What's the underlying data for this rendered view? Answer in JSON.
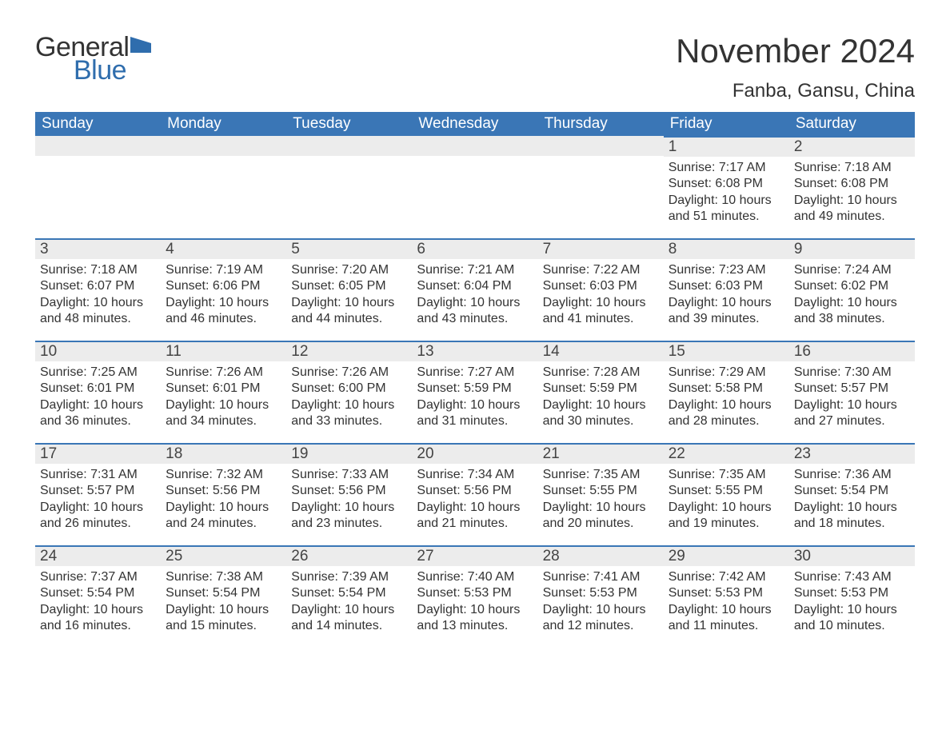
{
  "logo": {
    "word1": "General",
    "word2": "Blue",
    "flag_color": "#2f6dad"
  },
  "title": "November 2024",
  "location": "Fanba, Gansu, China",
  "colors": {
    "header_bg": "#3a76b6",
    "header_text": "#ffffff",
    "daybar_bg": "#ececec",
    "daybar_border": "#3a76b6",
    "body_text": "#333333",
    "page_bg": "#ffffff"
  },
  "font": {
    "title_size": 42,
    "location_size": 24,
    "th_size": 19,
    "daynum_size": 19,
    "body_size": 16
  },
  "weekday_labels": [
    "Sunday",
    "Monday",
    "Tuesday",
    "Wednesday",
    "Thursday",
    "Friday",
    "Saturday"
  ],
  "labels": {
    "sunrise": "Sunrise",
    "sunset": "Sunset",
    "daylight": "Daylight"
  },
  "weeks": [
    [
      null,
      null,
      null,
      null,
      null,
      {
        "n": "1",
        "sunrise": "7:17 AM",
        "sunset": "6:08 PM",
        "daylight": "10 hours and 51 minutes."
      },
      {
        "n": "2",
        "sunrise": "7:18 AM",
        "sunset": "6:08 PM",
        "daylight": "10 hours and 49 minutes."
      }
    ],
    [
      {
        "n": "3",
        "sunrise": "7:18 AM",
        "sunset": "6:07 PM",
        "daylight": "10 hours and 48 minutes."
      },
      {
        "n": "4",
        "sunrise": "7:19 AM",
        "sunset": "6:06 PM",
        "daylight": "10 hours and 46 minutes."
      },
      {
        "n": "5",
        "sunrise": "7:20 AM",
        "sunset": "6:05 PM",
        "daylight": "10 hours and 44 minutes."
      },
      {
        "n": "6",
        "sunrise": "7:21 AM",
        "sunset": "6:04 PM",
        "daylight": "10 hours and 43 minutes."
      },
      {
        "n": "7",
        "sunrise": "7:22 AM",
        "sunset": "6:03 PM",
        "daylight": "10 hours and 41 minutes."
      },
      {
        "n": "8",
        "sunrise": "7:23 AM",
        "sunset": "6:03 PM",
        "daylight": "10 hours and 39 minutes."
      },
      {
        "n": "9",
        "sunrise": "7:24 AM",
        "sunset": "6:02 PM",
        "daylight": "10 hours and 38 minutes."
      }
    ],
    [
      {
        "n": "10",
        "sunrise": "7:25 AM",
        "sunset": "6:01 PM",
        "daylight": "10 hours and 36 minutes."
      },
      {
        "n": "11",
        "sunrise": "7:26 AM",
        "sunset": "6:01 PM",
        "daylight": "10 hours and 34 minutes."
      },
      {
        "n": "12",
        "sunrise": "7:26 AM",
        "sunset": "6:00 PM",
        "daylight": "10 hours and 33 minutes."
      },
      {
        "n": "13",
        "sunrise": "7:27 AM",
        "sunset": "5:59 PM",
        "daylight": "10 hours and 31 minutes."
      },
      {
        "n": "14",
        "sunrise": "7:28 AM",
        "sunset": "5:59 PM",
        "daylight": "10 hours and 30 minutes."
      },
      {
        "n": "15",
        "sunrise": "7:29 AM",
        "sunset": "5:58 PM",
        "daylight": "10 hours and 28 minutes."
      },
      {
        "n": "16",
        "sunrise": "7:30 AM",
        "sunset": "5:57 PM",
        "daylight": "10 hours and 27 minutes."
      }
    ],
    [
      {
        "n": "17",
        "sunrise": "7:31 AM",
        "sunset": "5:57 PM",
        "daylight": "10 hours and 26 minutes."
      },
      {
        "n": "18",
        "sunrise": "7:32 AM",
        "sunset": "5:56 PM",
        "daylight": "10 hours and 24 minutes."
      },
      {
        "n": "19",
        "sunrise": "7:33 AM",
        "sunset": "5:56 PM",
        "daylight": "10 hours and 23 minutes."
      },
      {
        "n": "20",
        "sunrise": "7:34 AM",
        "sunset": "5:56 PM",
        "daylight": "10 hours and 21 minutes."
      },
      {
        "n": "21",
        "sunrise": "7:35 AM",
        "sunset": "5:55 PM",
        "daylight": "10 hours and 20 minutes."
      },
      {
        "n": "22",
        "sunrise": "7:35 AM",
        "sunset": "5:55 PM",
        "daylight": "10 hours and 19 minutes."
      },
      {
        "n": "23",
        "sunrise": "7:36 AM",
        "sunset": "5:54 PM",
        "daylight": "10 hours and 18 minutes."
      }
    ],
    [
      {
        "n": "24",
        "sunrise": "7:37 AM",
        "sunset": "5:54 PM",
        "daylight": "10 hours and 16 minutes."
      },
      {
        "n": "25",
        "sunrise": "7:38 AM",
        "sunset": "5:54 PM",
        "daylight": "10 hours and 15 minutes."
      },
      {
        "n": "26",
        "sunrise": "7:39 AM",
        "sunset": "5:54 PM",
        "daylight": "10 hours and 14 minutes."
      },
      {
        "n": "27",
        "sunrise": "7:40 AM",
        "sunset": "5:53 PM",
        "daylight": "10 hours and 13 minutes."
      },
      {
        "n": "28",
        "sunrise": "7:41 AM",
        "sunset": "5:53 PM",
        "daylight": "10 hours and 12 minutes."
      },
      {
        "n": "29",
        "sunrise": "7:42 AM",
        "sunset": "5:53 PM",
        "daylight": "10 hours and 11 minutes."
      },
      {
        "n": "30",
        "sunrise": "7:43 AM",
        "sunset": "5:53 PM",
        "daylight": "10 hours and 10 minutes."
      }
    ]
  ]
}
